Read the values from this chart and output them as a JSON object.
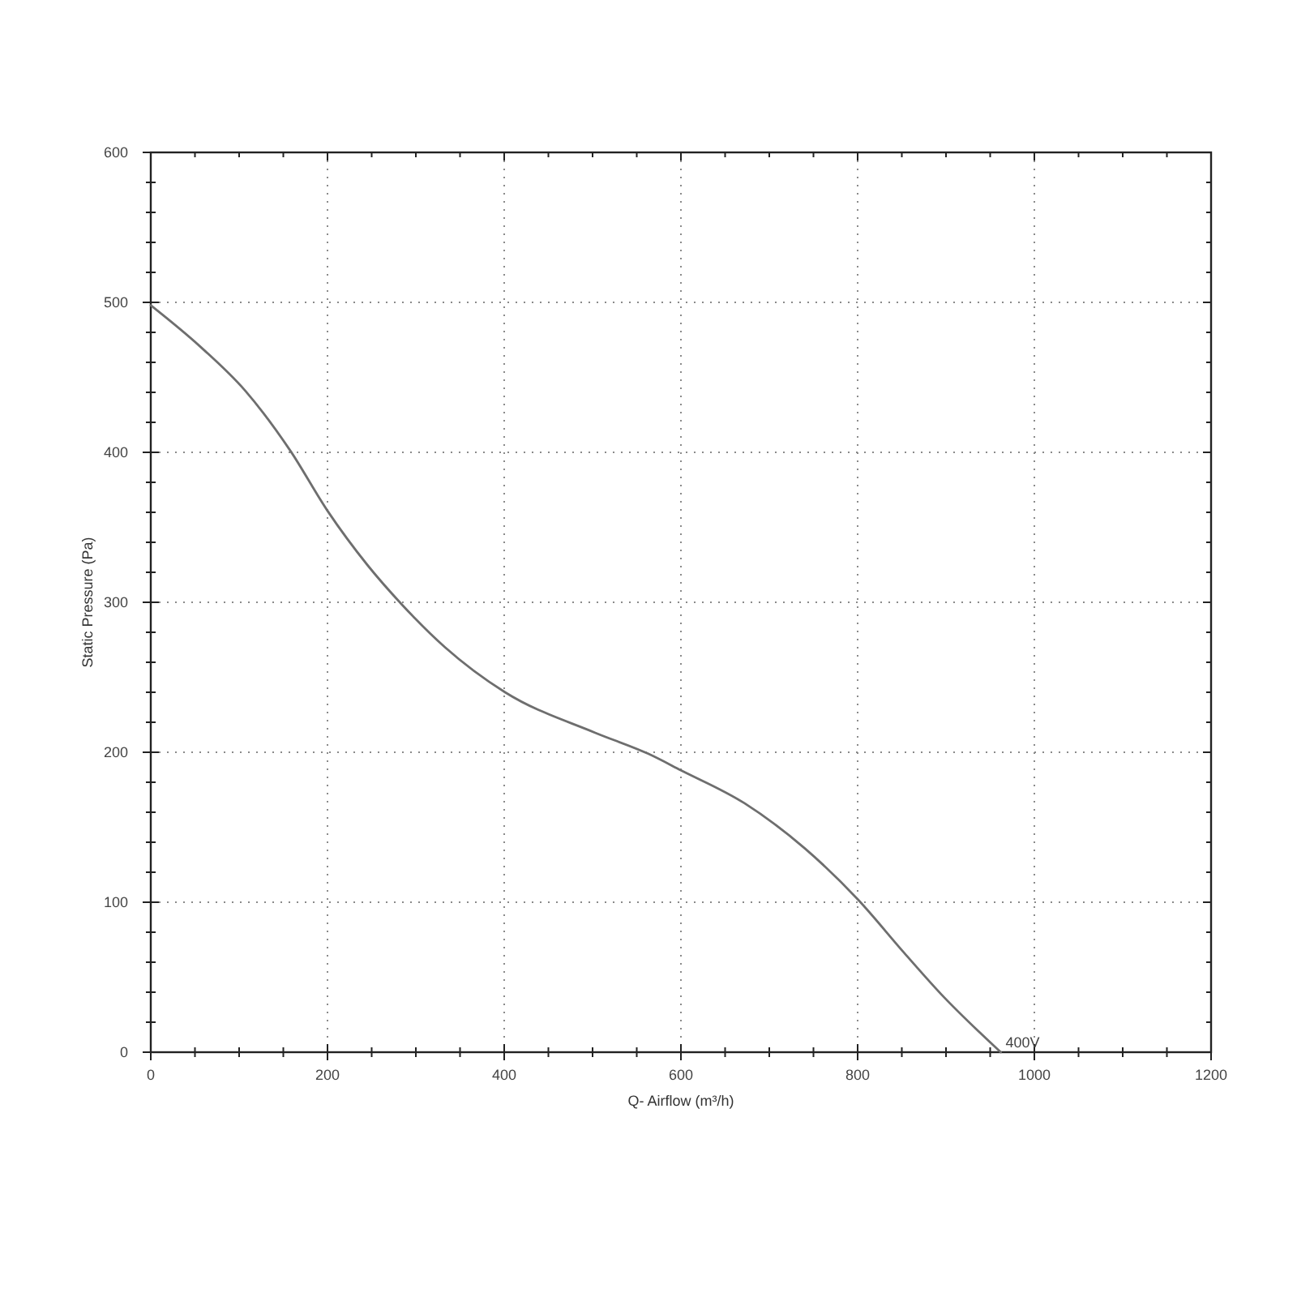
{
  "chart_data": {
    "type": "line",
    "xlabel": "Q- Airflow (m³/h)",
    "ylabel": "Static Pressure (Pa)",
    "x": [
      0,
      55,
      107,
      158,
      200,
      245,
      285,
      333,
      401,
      503,
      563,
      600,
      672,
      740,
      800,
      853,
      894,
      962
    ],
    "series": [
      {
        "name": "400V",
        "color": "#6e6e6e",
        "values": [
          498,
          471,
          441,
          401,
          361,
          325,
          298,
          270,
          240,
          213,
          199,
          188,
          166,
          136,
          102,
          66,
          39,
          0
        ]
      }
    ],
    "xlim": [
      0,
      1200
    ],
    "xticks": [
      0,
      {
        "value": 50,
        "label": null
      },
      {
        "value": 100,
        "label": null
      },
      {
        "value": 150,
        "label": null
      },
      200,
      {
        "value": 250,
        "label": null
      },
      {
        "value": 300,
        "label": null
      },
      {
        "value": 350,
        "label": null
      },
      400,
      {
        "value": 450,
        "label": null
      },
      {
        "value": 500,
        "label": null
      },
      {
        "value": 550,
        "label": null
      },
      600,
      {
        "value": 650,
        "label": null
      },
      {
        "value": 700,
        "label": null
      },
      {
        "value": 750,
        "label": null
      },
      800,
      {
        "value": 850,
        "label": null
      },
      {
        "value": 900,
        "label": null
      },
      {
        "value": 950,
        "label": null
      },
      1000,
      {
        "value": 1050,
        "label": null
      },
      {
        "value": 1100,
        "label": null
      },
      {
        "value": 1150,
        "label": null
      },
      1200
    ],
    "ylim": [
      0,
      600
    ],
    "yticks": [
      0,
      {
        "value": 20,
        "label": null
      },
      {
        "value": 40,
        "label": null
      },
      {
        "value": 60,
        "label": null
      },
      {
        "value": 80,
        "label": null
      },
      100,
      {
        "value": 120,
        "label": null
      },
      {
        "value": 140,
        "label": null
      },
      {
        "value": 160,
        "label": null
      },
      {
        "value": 180,
        "label": null
      },
      200,
      {
        "value": 220,
        "label": null
      },
      {
        "value": 240,
        "label": null
      },
      {
        "value": 260,
        "label": null
      },
      {
        "value": 280,
        "label": null
      },
      300,
      {
        "value": 320,
        "label": null
      },
      {
        "value": 340,
        "label": null
      },
      {
        "value": 360,
        "label": null
      },
      {
        "value": 380,
        "label": null
      },
      400,
      {
        "value": 420,
        "label": null
      },
      {
        "value": 440,
        "label": null
      },
      {
        "value": 460,
        "label": null
      },
      {
        "value": 480,
        "label": null
      },
      500,
      {
        "value": 520,
        "label": null
      },
      {
        "value": 540,
        "label": null
      },
      {
        "value": 560,
        "label": null
      },
      {
        "value": 580,
        "label": null
      },
      600
    ],
    "grid": true,
    "marker": "none",
    "line_style": "solid"
  }
}
